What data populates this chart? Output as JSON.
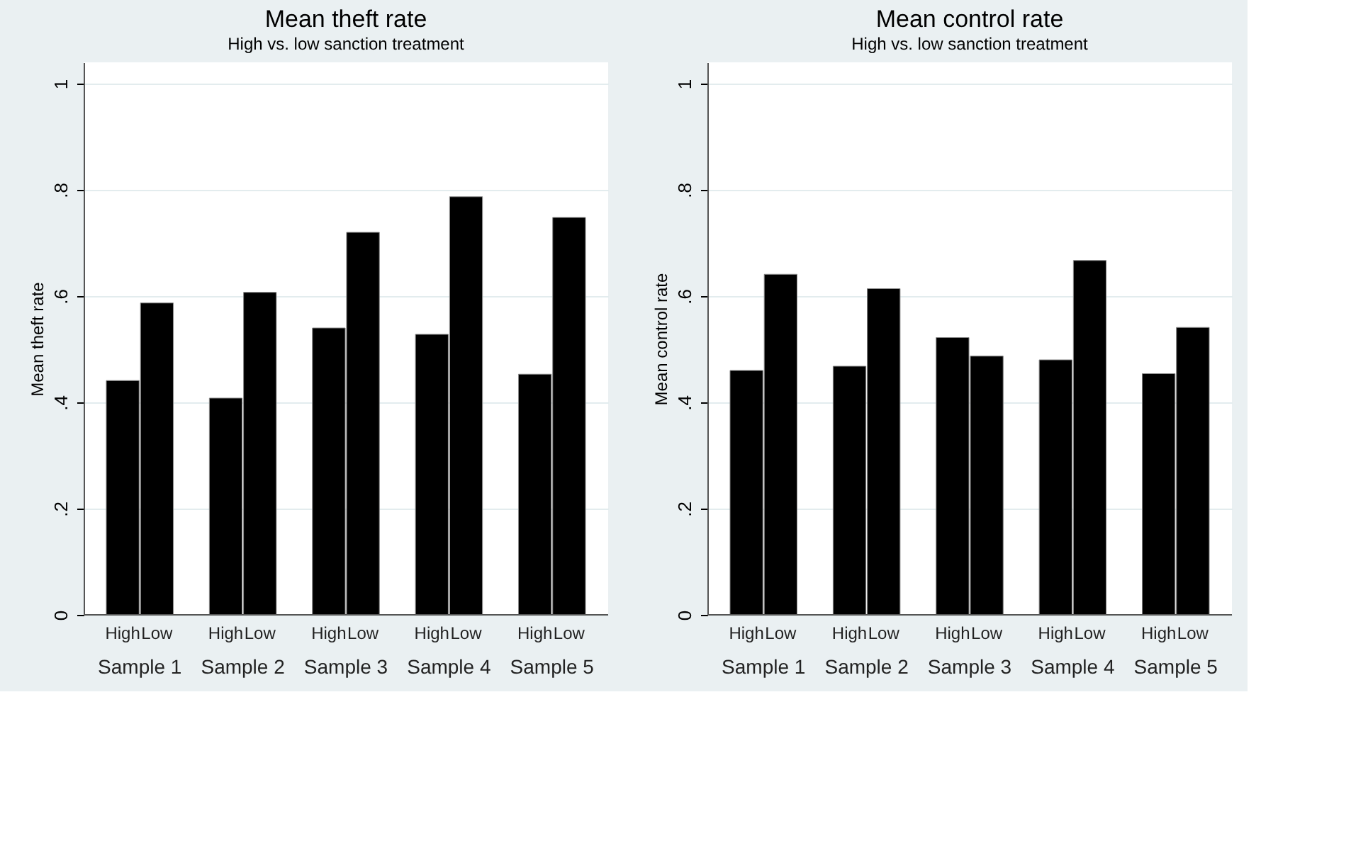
{
  "chart_data": [
    {
      "type": "bar",
      "title": "Mean theft rate",
      "subtitle": "High vs. low sanction treatment",
      "ylabel": "Mean theft rate",
      "categories": [
        "Sample 1",
        "Sample 2",
        "Sample 3",
        "Sample 4",
        "Sample 5"
      ],
      "series": [
        {
          "name": "High",
          "color": "#000000",
          "values": [
            0.441,
            0.408,
            0.54,
            0.528,
            0.453
          ]
        },
        {
          "name": "Low",
          "color": "#000000",
          "values": [
            0.587,
            0.607,
            0.72,
            0.787,
            0.748
          ]
        }
      ],
      "ylim": [
        0,
        1.04
      ],
      "yticks": [
        0,
        {
          "value": 0.2,
          "label": ".2"
        },
        {
          "value": 0.4,
          "label": ".4"
        },
        {
          "value": 0.6,
          "label": ".6"
        },
        {
          "value": 0.8,
          "label": ".8"
        },
        1
      ],
      "grid": "y"
    },
    {
      "type": "bar",
      "title": "Mean control rate",
      "subtitle": "High vs. low sanction treatment",
      "ylabel": "Mean control rate",
      "categories": [
        "Sample 1",
        "Sample 2",
        "Sample 3",
        "Sample 4",
        "Sample 5"
      ],
      "series": [
        {
          "name": "High",
          "color": "#000000",
          "values": [
            0.46,
            0.468,
            0.522,
            0.48,
            0.454
          ]
        },
        {
          "name": "Low",
          "color": "#000000",
          "values": [
            0.641,
            0.614,
            0.487,
            0.667,
            0.541
          ]
        }
      ],
      "ylim": [
        0,
        1.04
      ],
      "yticks": [
        0,
        {
          "value": 0.2,
          "label": ".2"
        },
        {
          "value": 0.4,
          "label": ".4"
        },
        {
          "value": 0.6,
          "label": ".6"
        },
        {
          "value": 0.8,
          "label": ".8"
        },
        1
      ],
      "grid": "y"
    }
  ]
}
